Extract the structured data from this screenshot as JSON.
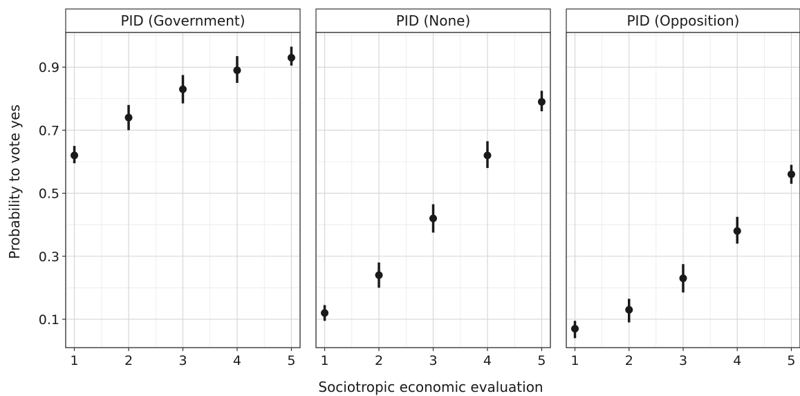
{
  "chart_data": {
    "type": "scatter",
    "style": "pointrange",
    "facet_by": "PID",
    "xlabel": "Sociotropic economic evaluation",
    "ylabel": "Probability to vote yes",
    "x_ticks": [
      1,
      2,
      3,
      4,
      5
    ],
    "y_ticks": [
      0.1,
      0.3,
      0.5,
      0.7,
      0.9
    ],
    "y_tick_labels": [
      "0.1",
      "0.3",
      "0.5",
      "0.7",
      "0.9"
    ],
    "xlim": [
      0.84,
      5.16
    ],
    "ylim": [
      0.01,
      1.01
    ],
    "grid": true,
    "color": "#1a1a1a",
    "panels": [
      {
        "label": "PID (Government)",
        "x": [
          1,
          2,
          3,
          4,
          5
        ],
        "y": [
          0.62,
          0.74,
          0.83,
          0.89,
          0.93
        ],
        "lower": [
          0.595,
          0.7,
          0.785,
          0.85,
          0.905
        ],
        "upper": [
          0.65,
          0.78,
          0.875,
          0.935,
          0.965
        ]
      },
      {
        "label": "PID (None)",
        "x": [
          1,
          2,
          3,
          4,
          5
        ],
        "y": [
          0.12,
          0.24,
          0.42,
          0.62,
          0.79
        ],
        "lower": [
          0.095,
          0.2,
          0.375,
          0.58,
          0.76
        ],
        "upper": [
          0.145,
          0.28,
          0.465,
          0.665,
          0.825
        ]
      },
      {
        "label": "PID (Opposition)",
        "x": [
          1,
          2,
          3,
          4,
          5
        ],
        "y": [
          0.07,
          0.13,
          0.23,
          0.38,
          0.56
        ],
        "lower": [
          0.04,
          0.09,
          0.185,
          0.34,
          0.53
        ],
        "upper": [
          0.095,
          0.165,
          0.275,
          0.425,
          0.59
        ]
      }
    ]
  }
}
